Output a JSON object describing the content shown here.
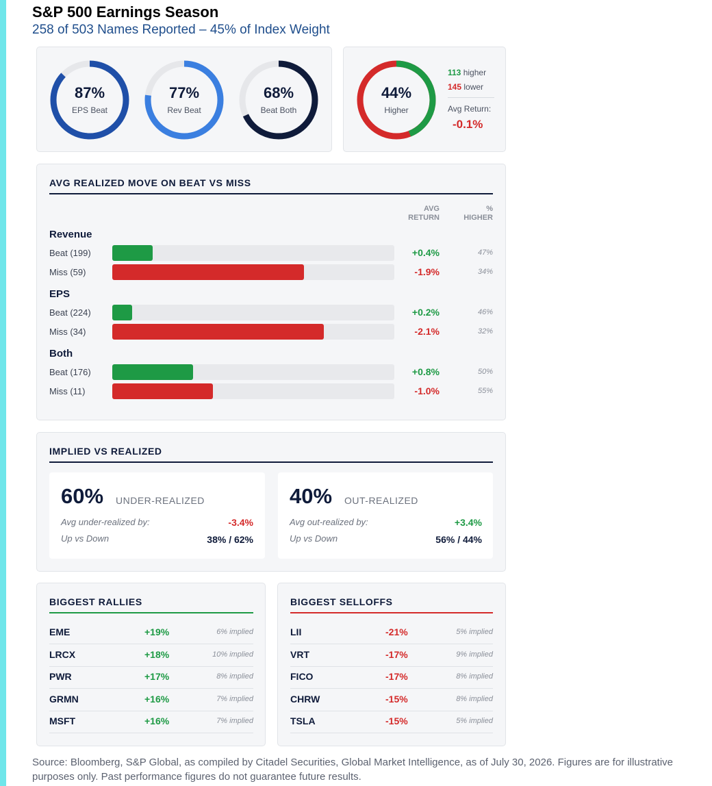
{
  "header": {
    "title": "S&P 500 Earnings Season",
    "subtitle": "258 of 503 Names Reported – 45% of Index Weight"
  },
  "beat_rates": [
    {
      "value": "87%",
      "label": "EPS Beat",
      "fraction": 0.87,
      "color": "#1f4fa8"
    },
    {
      "value": "77%",
      "label": "Rev Beat",
      "fraction": 0.77,
      "color": "#3b7fe0"
    },
    {
      "value": "68%",
      "label": "Beat Both",
      "fraction": 0.68,
      "color": "#0f1b3a"
    }
  ],
  "up_down": {
    "value": "44%",
    "label": "Higher",
    "fraction_higher": 0.44,
    "higher_count": "113",
    "higher_text": "higher",
    "lower_count": "145",
    "lower_text": "lower",
    "avg_return_label": "Avg Return:",
    "avg_return_value": "-0.1%",
    "colors": {
      "higher": "#1e9a45",
      "lower": "#d42a2a"
    }
  },
  "realized_move": {
    "title": "AVG REALIZED MOVE ON BEAT VS MISS",
    "col_return": "AVG RETURN",
    "col_higher": "% HIGHER",
    "groups": [
      {
        "name": "Revenue",
        "rows": [
          {
            "label": "Beat (199)",
            "kind": "beat",
            "ret": "+0.4%",
            "value": 0.4,
            "higher": "47%"
          },
          {
            "label": "Miss (59)",
            "kind": "miss",
            "ret": "-1.9%",
            "value": -1.9,
            "higher": "34%"
          }
        ]
      },
      {
        "name": "EPS",
        "rows": [
          {
            "label": "Beat (224)",
            "kind": "beat",
            "ret": "+0.2%",
            "value": 0.2,
            "higher": "46%"
          },
          {
            "label": "Miss (34)",
            "kind": "miss",
            "ret": "-2.1%",
            "value": -2.1,
            "higher": "32%"
          }
        ]
      },
      {
        "name": "Both",
        "rows": [
          {
            "label": "Beat (176)",
            "kind": "beat",
            "ret": "+0.8%",
            "value": 0.8,
            "higher": "50%"
          },
          {
            "label": "Miss (11)",
            "kind": "miss",
            "ret": "-1.0%",
            "value": -1.0,
            "higher": "55%"
          }
        ]
      }
    ]
  },
  "implied_vs_realized": {
    "title": "IMPLIED VS REALIZED",
    "under": {
      "pct": "60%",
      "label": "UNDER-REALIZED",
      "avg_key": "Avg under-realized by:",
      "avg_val": "-3.4%",
      "updown_key": "Up vs Down",
      "updown_val": "38% / 62%"
    },
    "out": {
      "pct": "40%",
      "label": "OUT-REALIZED",
      "avg_key": "Avg out-realized by:",
      "avg_val": "+3.4%",
      "updown_key": "Up vs Down",
      "updown_val": "56% / 44%"
    }
  },
  "rallies": {
    "title": "BIGGEST RALLIES",
    "accent": "#1e9a45",
    "rows": [
      {
        "ticker": "EME",
        "move": "+19%",
        "implied": "6% implied"
      },
      {
        "ticker": "LRCX",
        "move": "+18%",
        "implied": "10% implied"
      },
      {
        "ticker": "PWR",
        "move": "+17%",
        "implied": "8% implied"
      },
      {
        "ticker": "GRMN",
        "move": "+16%",
        "implied": "7% implied"
      },
      {
        "ticker": "MSFT",
        "move": "+16%",
        "implied": "7% implied"
      }
    ]
  },
  "selloffs": {
    "title": "BIGGEST SELLOFFS",
    "accent": "#d42a2a",
    "rows": [
      {
        "ticker": "LII",
        "move": "-21%",
        "implied": "5% implied"
      },
      {
        "ticker": "VRT",
        "move": "-17%",
        "implied": "9% implied"
      },
      {
        "ticker": "FICO",
        "move": "-17%",
        "implied": "8% implied"
      },
      {
        "ticker": "CHRW",
        "move": "-15%",
        "implied": "8% implied"
      },
      {
        "ticker": "TSLA",
        "move": "-15%",
        "implied": "5% implied"
      }
    ]
  },
  "footnote": "Source: Bloomberg, S&P Global, as compiled by Citadel Securities, Global Market Intelligence, as of July 30, 2026. Figures are for illustrative purposes only. Past performance figures do not guarantee future results."
}
